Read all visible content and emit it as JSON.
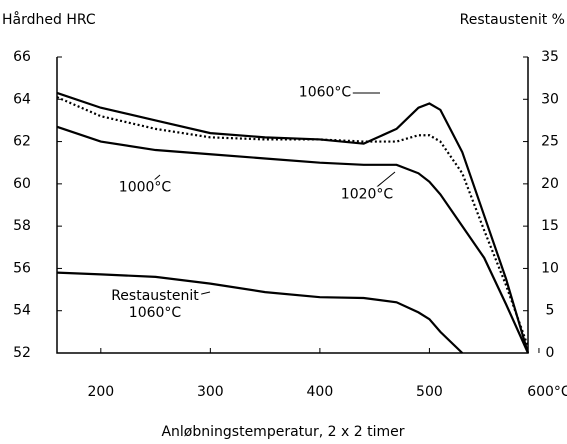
{
  "chart_data": {
    "type": "line",
    "ylabel": "Hårdhed HRC",
    "y2label": "Restaustenit %",
    "xlabel": "Anløbningstemperatur, 2 x 2 timer",
    "x": [
      160,
      200,
      250,
      300,
      350,
      400,
      440,
      470,
      490,
      500,
      510,
      530,
      550,
      570,
      590
    ],
    "xlim": [
      160,
      590
    ],
    "xticks": [
      200,
      300,
      400,
      500,
      {
        "value": 600,
        "label": "600°C"
      }
    ],
    "ylim": [
      52,
      66
    ],
    "yticks": [
      52,
      54,
      56,
      58,
      60,
      62,
      64,
      66
    ],
    "y2lim": [
      0,
      35
    ],
    "y2ticks": [
      0,
      5,
      10,
      15,
      20,
      25,
      30,
      35
    ],
    "series": [
      {
        "name": "1060°C",
        "color": "#000000",
        "dash": "solid",
        "values": [
          64.3,
          63.6,
          63.0,
          62.4,
          62.2,
          62.1,
          61.9,
          62.6,
          63.6,
          63.8,
          63.5,
          61.5,
          58.5,
          55.5,
          52
        ]
      },
      {
        "name": "1000°C",
        "color": "#000000",
        "dash": "solid",
        "values": [
          62.7,
          62.0,
          61.6,
          61.4,
          61.2,
          61.0,
          60.9,
          60.9,
          60.5,
          60.1,
          59.5,
          58.0,
          56.5,
          54.3,
          52
        ]
      },
      {
        "name": "1020°C",
        "color": "#000000",
        "dash": "dotted",
        "values": [
          64.1,
          63.2,
          62.6,
          62.2,
          62.1,
          62.1,
          62.0,
          62.0,
          62.3,
          62.3,
          62.0,
          60.5,
          57.8,
          55.2,
          52.3
        ]
      },
      {
        "name": "Restaustenit\n1060°C",
        "color": "#000000",
        "dash": "solid",
        "axis": "y2",
        "values": [
          9.5,
          9.3,
          9.0,
          8.2,
          7.2,
          6.6,
          6.5,
          6.0,
          4.8,
          4.0,
          2.5,
          0,
          null,
          null,
          null
        ]
      }
    ]
  }
}
